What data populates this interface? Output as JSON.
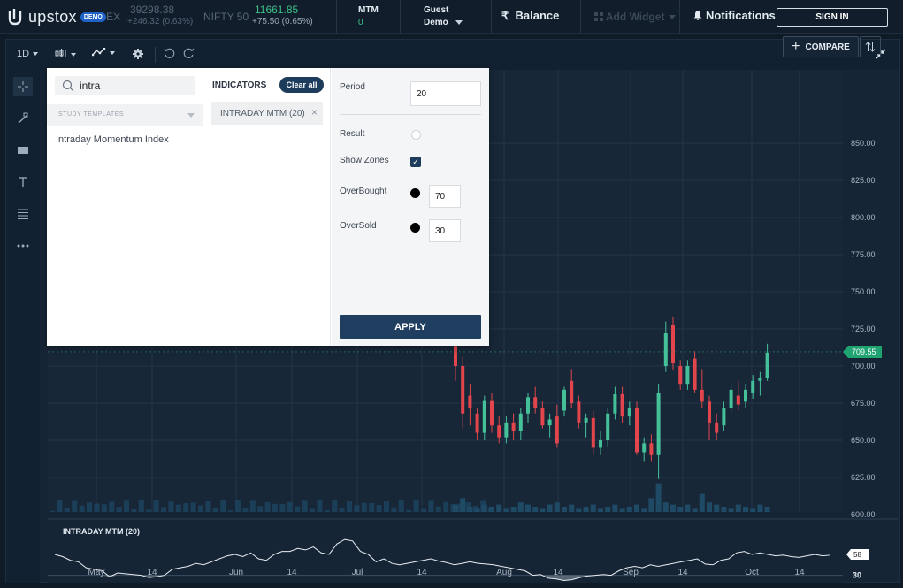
{
  "topbar": {
    "logo_text": "upstox",
    "demo_badge": "DEMO",
    "sensex": {
      "label_partial": "EX",
      "value": "39298.38",
      "change": "+246.32 (0.63%)"
    },
    "nifty": {
      "label": "NIFTY 50",
      "value": "11661.85",
      "change": "+75.50 (0.65%)"
    },
    "mtm_label": "MTM",
    "mtm_value": "0",
    "user_line1": "Guest",
    "user_line2": "Demo",
    "balance_label": "Balance",
    "currency_symbol": "₹",
    "add_widget_label": "Add Widget",
    "notifications_label": "Notifications",
    "signin_label": "SIGN IN"
  },
  "toolbar": {
    "interval": "1D",
    "compare_label": "COMPARE"
  },
  "dialog": {
    "search_value": "intra",
    "templates_label": "STUDY TEMPLATES",
    "study_result": "Intraday Momentum Index",
    "indicators_title": "INDICATORS",
    "clear_all": "Clear all",
    "active_indicator": "INTRADAY MTM (20)",
    "period_label": "Period",
    "period_value": "20",
    "result_label": "Result",
    "show_zones_label": "Show Zones",
    "overbought_label": "OverBought",
    "overbought_value": "70",
    "oversold_label": "OverSold",
    "oversold_value": "30",
    "apply_label": "APPLY"
  },
  "chart_data": {
    "type": "candlestick",
    "price_axis": [
      "850.00",
      "825.00",
      "800.00",
      "775.00",
      "750.00",
      "725.00",
      "700.00",
      "675.00",
      "650.00",
      "625.00",
      "600.00"
    ],
    "ylim": [
      600,
      850
    ],
    "last_price": "709.55",
    "x_labels": [
      "May",
      "14",
      "Jun",
      "14",
      "Jul",
      "14",
      "Aug",
      "14",
      "Sep",
      "14",
      "Oct",
      "14"
    ],
    "indicator_label": "INTRADAY MTM (20)",
    "indicator_axis": [
      "30"
    ],
    "indicator_last": "58",
    "colors": {
      "up": "#45c19a",
      "down": "#e2454b",
      "line": "#e8edf2",
      "volume": "#1f4a66"
    },
    "candles": [
      {
        "o": 718,
        "h": 727,
        "l": 690,
        "c": 700
      },
      {
        "o": 700,
        "h": 706,
        "l": 658,
        "c": 668
      },
      {
        "o": 680,
        "h": 688,
        "l": 660,
        "c": 672
      },
      {
        "o": 668,
        "h": 672,
        "l": 650,
        "c": 655
      },
      {
        "o": 655,
        "h": 680,
        "l": 650,
        "c": 677
      },
      {
        "o": 677,
        "h": 682,
        "l": 655,
        "c": 660
      },
      {
        "o": 660,
        "h": 666,
        "l": 648,
        "c": 652
      },
      {
        "o": 652,
        "h": 666,
        "l": 648,
        "c": 662
      },
      {
        "o": 662,
        "h": 668,
        "l": 650,
        "c": 656
      },
      {
        "o": 656,
        "h": 672,
        "l": 650,
        "c": 668
      },
      {
        "o": 668,
        "h": 682,
        "l": 662,
        "c": 679
      },
      {
        "o": 679,
        "h": 686,
        "l": 668,
        "c": 672
      },
      {
        "o": 672,
        "h": 676,
        "l": 658,
        "c": 660
      },
      {
        "o": 660,
        "h": 668,
        "l": 652,
        "c": 664
      },
      {
        "o": 666,
        "h": 674,
        "l": 645,
        "c": 648
      },
      {
        "o": 670,
        "h": 686,
        "l": 666,
        "c": 684
      },
      {
        "o": 690,
        "h": 698,
        "l": 672,
        "c": 675
      },
      {
        "o": 676,
        "h": 680,
        "l": 658,
        "c": 662
      },
      {
        "o": 662,
        "h": 668,
        "l": 652,
        "c": 665
      },
      {
        "o": 665,
        "h": 670,
        "l": 640,
        "c": 645
      },
      {
        "o": 645,
        "h": 656,
        "l": 640,
        "c": 650
      },
      {
        "o": 650,
        "h": 672,
        "l": 646,
        "c": 668
      },
      {
        "o": 668,
        "h": 686,
        "l": 664,
        "c": 681
      },
      {
        "o": 681,
        "h": 686,
        "l": 662,
        "c": 666
      },
      {
        "o": 666,
        "h": 676,
        "l": 660,
        "c": 672
      },
      {
        "o": 672,
        "h": 676,
        "l": 640,
        "c": 642
      },
      {
        "o": 642,
        "h": 652,
        "l": 636,
        "c": 648
      },
      {
        "o": 648,
        "h": 654,
        "l": 636,
        "c": 640
      },
      {
        "o": 640,
        "h": 688,
        "l": 624,
        "c": 682
      },
      {
        "o": 700,
        "h": 730,
        "l": 696,
        "c": 722
      },
      {
        "o": 728,
        "h": 733,
        "l": 697,
        "c": 702
      },
      {
        "o": 700,
        "h": 704,
        "l": 684,
        "c": 688
      },
      {
        "o": 688,
        "h": 704,
        "l": 684,
        "c": 700
      },
      {
        "o": 705,
        "h": 710,
        "l": 682,
        "c": 684
      },
      {
        "o": 684,
        "h": 698,
        "l": 672,
        "c": 676
      },
      {
        "o": 676,
        "h": 680,
        "l": 650,
        "c": 662
      },
      {
        "o": 662,
        "h": 668,
        "l": 650,
        "c": 655
      },
      {
        "o": 660,
        "h": 676,
        "l": 656,
        "c": 672
      },
      {
        "o": 672,
        "h": 688,
        "l": 668,
        "c": 684
      },
      {
        "o": 680,
        "h": 690,
        "l": 670,
        "c": 674
      },
      {
        "o": 676,
        "h": 688,
        "l": 672,
        "c": 684
      },
      {
        "o": 682,
        "h": 694,
        "l": 678,
        "c": 690
      },
      {
        "o": 690,
        "h": 696,
        "l": 680,
        "c": 692
      },
      {
        "o": 692,
        "h": 715,
        "l": 690,
        "c": 709
      }
    ],
    "volume": [
      0.3,
      0.45,
      0.25,
      0.2,
      0.3,
      0.25,
      0.3,
      0.2,
      0.25,
      0.35,
      0.3,
      0.25,
      0.2,
      0.3,
      0.35,
      0.25,
      0.3,
      0.2,
      0.25,
      0.3,
      0.2,
      0.25,
      0.3,
      0.2,
      0.25,
      0.3,
      0.2,
      0.45,
      0.8,
      0.35,
      0.3,
      0.25,
      0.3,
      0.2,
      0.55,
      0.35,
      0.3,
      0.25,
      0.2,
      0.3,
      0.25,
      0.2,
      0.3,
      0.25
    ],
    "mtm": [
      58,
      55,
      50,
      48,
      40,
      38,
      36,
      28,
      33,
      32,
      31,
      30,
      27,
      28,
      30,
      38,
      40,
      42,
      46,
      44,
      48,
      52,
      56,
      58,
      55,
      60,
      52,
      50,
      58,
      62,
      62,
      66,
      64,
      68,
      60,
      58,
      72,
      78,
      76,
      62,
      58,
      48,
      52,
      46,
      44,
      46,
      48,
      50,
      52,
      49,
      47,
      44,
      46,
      48,
      46,
      45,
      44,
      42,
      40,
      38,
      36,
      30,
      31,
      26,
      25,
      23,
      24,
      27,
      29,
      30,
      31,
      30,
      36,
      40,
      42,
      40,
      44,
      42,
      44,
      46,
      48,
      50,
      52,
      45,
      44,
      50,
      52,
      60,
      62,
      58,
      60,
      58,
      56,
      57,
      55,
      54,
      56,
      58,
      56,
      57
    ]
  }
}
